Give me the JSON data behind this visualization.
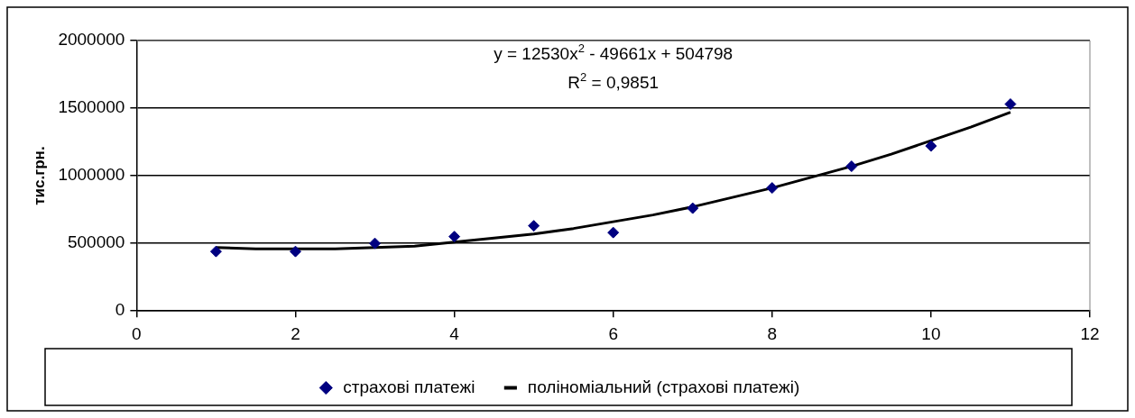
{
  "chart_data": {
    "type": "scatter",
    "ylabel": "тис.грн.",
    "annotations": [
      "y = 12530x$^{2}$ - 49661x + 504798",
      "R$^{2}$ = 0,9851"
    ],
    "series": [
      {
        "name": "страхові платежі",
        "type": "scatter",
        "color": "#000080",
        "marker": "diamond",
        "x": [
          1,
          2,
          3,
          4,
          5,
          6,
          7,
          8,
          9,
          10,
          11
        ],
        "values": [
          440000,
          440000,
          500000,
          550000,
          630000,
          580000,
          760000,
          910000,
          1070000,
          1220000,
          1530000
        ]
      },
      {
        "name": "поліноміальний (страхові платежі)",
        "type": "line",
        "color": "#000000",
        "marker": "none",
        "line_style": "solid",
        "x": [
          1,
          1.5,
          2,
          2.5,
          3,
          3.5,
          4,
          4.5,
          5,
          5.5,
          6,
          6.5,
          7,
          7.5,
          8,
          8.5,
          9,
          9.5,
          10,
          10.5,
          11
        ],
        "values": [
          470000,
          460000,
          460000,
          460000,
          470000,
          480000,
          510000,
          540000,
          570000,
          610000,
          660000,
          710000,
          770000,
          840000,
          910000,
          990000,
          1070000,
          1160000,
          1260000,
          1360000,
          1470000
        ]
      }
    ],
    "xlim": [
      0,
      12
    ],
    "xticks": [
      0,
      2,
      4,
      6,
      8,
      10,
      12
    ],
    "ylim": [
      0,
      2000000
    ],
    "yticks": [
      0,
      500000,
      1000000,
      1500000,
      2000000
    ],
    "grid": "y",
    "legend": "bottom"
  }
}
